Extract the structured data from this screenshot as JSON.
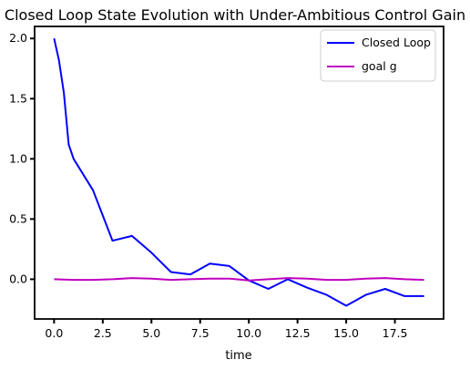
{
  "chart_data": {
    "type": "line",
    "title": "Closed Loop State Evolution with Under-Ambitious Control Gain",
    "xlabel": "time",
    "ylabel": "",
    "xlim": [
      -1.0,
      20.0
    ],
    "ylim": [
      -0.33,
      2.1
    ],
    "xticks": [
      0.0,
      2.5,
      5.0,
      7.5,
      10.0,
      12.5,
      15.0,
      17.5
    ],
    "xtick_labels": [
      "0.0",
      "2.5",
      "5.0",
      "7.5",
      "10.0",
      "12.5",
      "15.0",
      "17.5"
    ],
    "yticks": [
      0.0,
      0.5,
      1.0,
      1.5,
      2.0
    ],
    "ytick_labels": [
      "0.0",
      "0.5",
      "1.0",
      "1.5",
      "2.0"
    ],
    "grid": false,
    "legend_position": "top-right",
    "series": [
      {
        "name": "Closed Loop",
        "color": "#0000ff",
        "x": [
          0,
          0.25,
          0.5,
          0.75,
          1,
          2,
          2.5,
          3,
          4,
          5,
          6,
          7,
          8,
          9,
          10,
          11,
          12,
          13,
          14,
          15,
          16,
          17,
          18,
          19
        ],
        "y": [
          2.0,
          1.82,
          1.55,
          1.12,
          1.0,
          0.74,
          0.53,
          0.32,
          0.36,
          0.22,
          0.06,
          0.04,
          0.13,
          0.11,
          -0.01,
          -0.08,
          0.0,
          -0.07,
          -0.13,
          -0.22,
          -0.13,
          -0.08,
          -0.14,
          -0.14
        ]
      },
      {
        "name": "goal g",
        "color": "#bf00bf",
        "x": [
          0,
          1,
          2,
          3,
          4,
          5,
          6,
          7,
          8,
          9,
          10,
          11,
          12,
          13,
          14,
          15,
          16,
          17,
          18,
          19
        ],
        "y": [
          0.0,
          -0.005,
          -0.005,
          0.0,
          0.01,
          0.005,
          -0.005,
          0.0,
          0.005,
          0.005,
          -0.01,
          0.0,
          0.01,
          0.005,
          -0.005,
          -0.005,
          0.005,
          0.01,
          0.0,
          -0.005
        ]
      }
    ]
  }
}
